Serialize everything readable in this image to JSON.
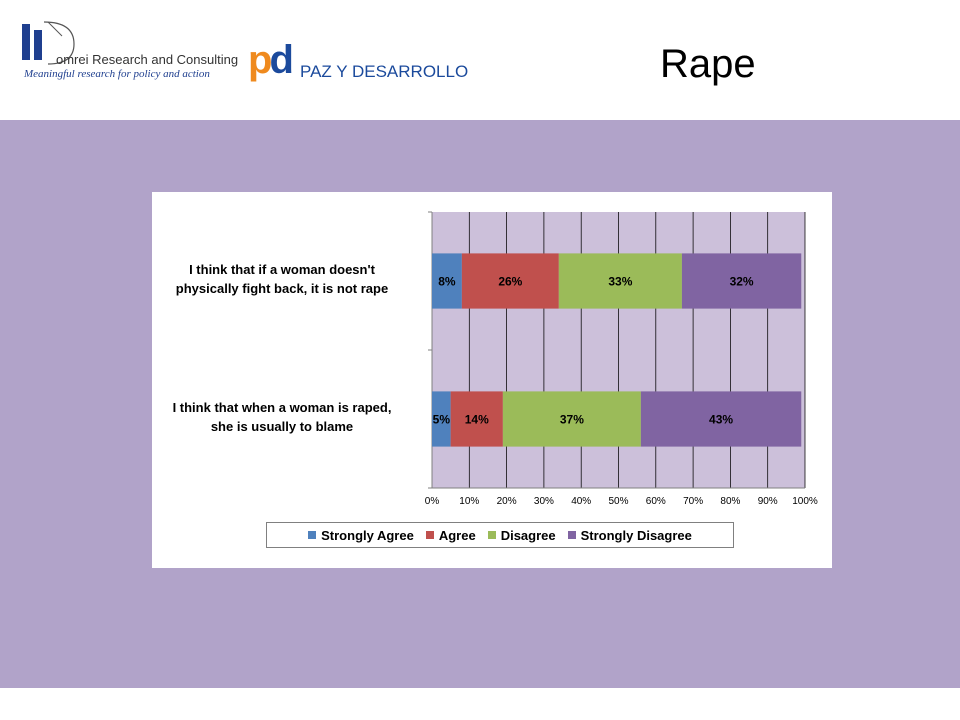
{
  "header": {
    "logo1": {
      "name": "omrei Research and Consulting",
      "tagline": "Meaningful research for policy and action"
    },
    "logo2": {
      "mark_left": "p",
      "mark_right": "d",
      "name": "PAZ Y DESARROLLO"
    },
    "title": "Rape"
  },
  "colors": {
    "band": "#b1a3c9",
    "plot_bg": "#ccc0da"
  },
  "chart_data": {
    "type": "bar",
    "orientation": "horizontal",
    "stacked": true,
    "percent": true,
    "categories": [
      "I think that if a woman doesn't physically fight back, it is not rape",
      "I think that when a woman is raped, she is usually to blame"
    ],
    "category_lines": [
      [
        "I think that if a woman doesn't",
        "physically fight back, it is not rape"
      ],
      [
        "I think that when a woman is raped,",
        "she is usually to blame"
      ]
    ],
    "series": [
      {
        "name": "Strongly Agree",
        "color": "#4f81bd",
        "values": [
          8,
          5
        ],
        "labels": [
          "8%",
          "5%"
        ]
      },
      {
        "name": "Agree",
        "color": "#c0504d",
        "values": [
          26,
          14
        ],
        "labels": [
          "26%",
          "14%"
        ]
      },
      {
        "name": "Disagree",
        "color": "#9bbb59",
        "values": [
          33,
          37
        ],
        "labels": [
          "33%",
          "37%"
        ]
      },
      {
        "name": "Strongly Disagree",
        "color": "#8064a2",
        "values": [
          32,
          43
        ],
        "labels": [
          "32%",
          "43%"
        ]
      }
    ],
    "xlim": [
      0,
      100
    ],
    "x_ticks": [
      "0%",
      "10%",
      "20%",
      "30%",
      "40%",
      "50%",
      "60%",
      "70%",
      "80%",
      "90%",
      "100%"
    ],
    "grid": true,
    "legend": "bottom"
  }
}
